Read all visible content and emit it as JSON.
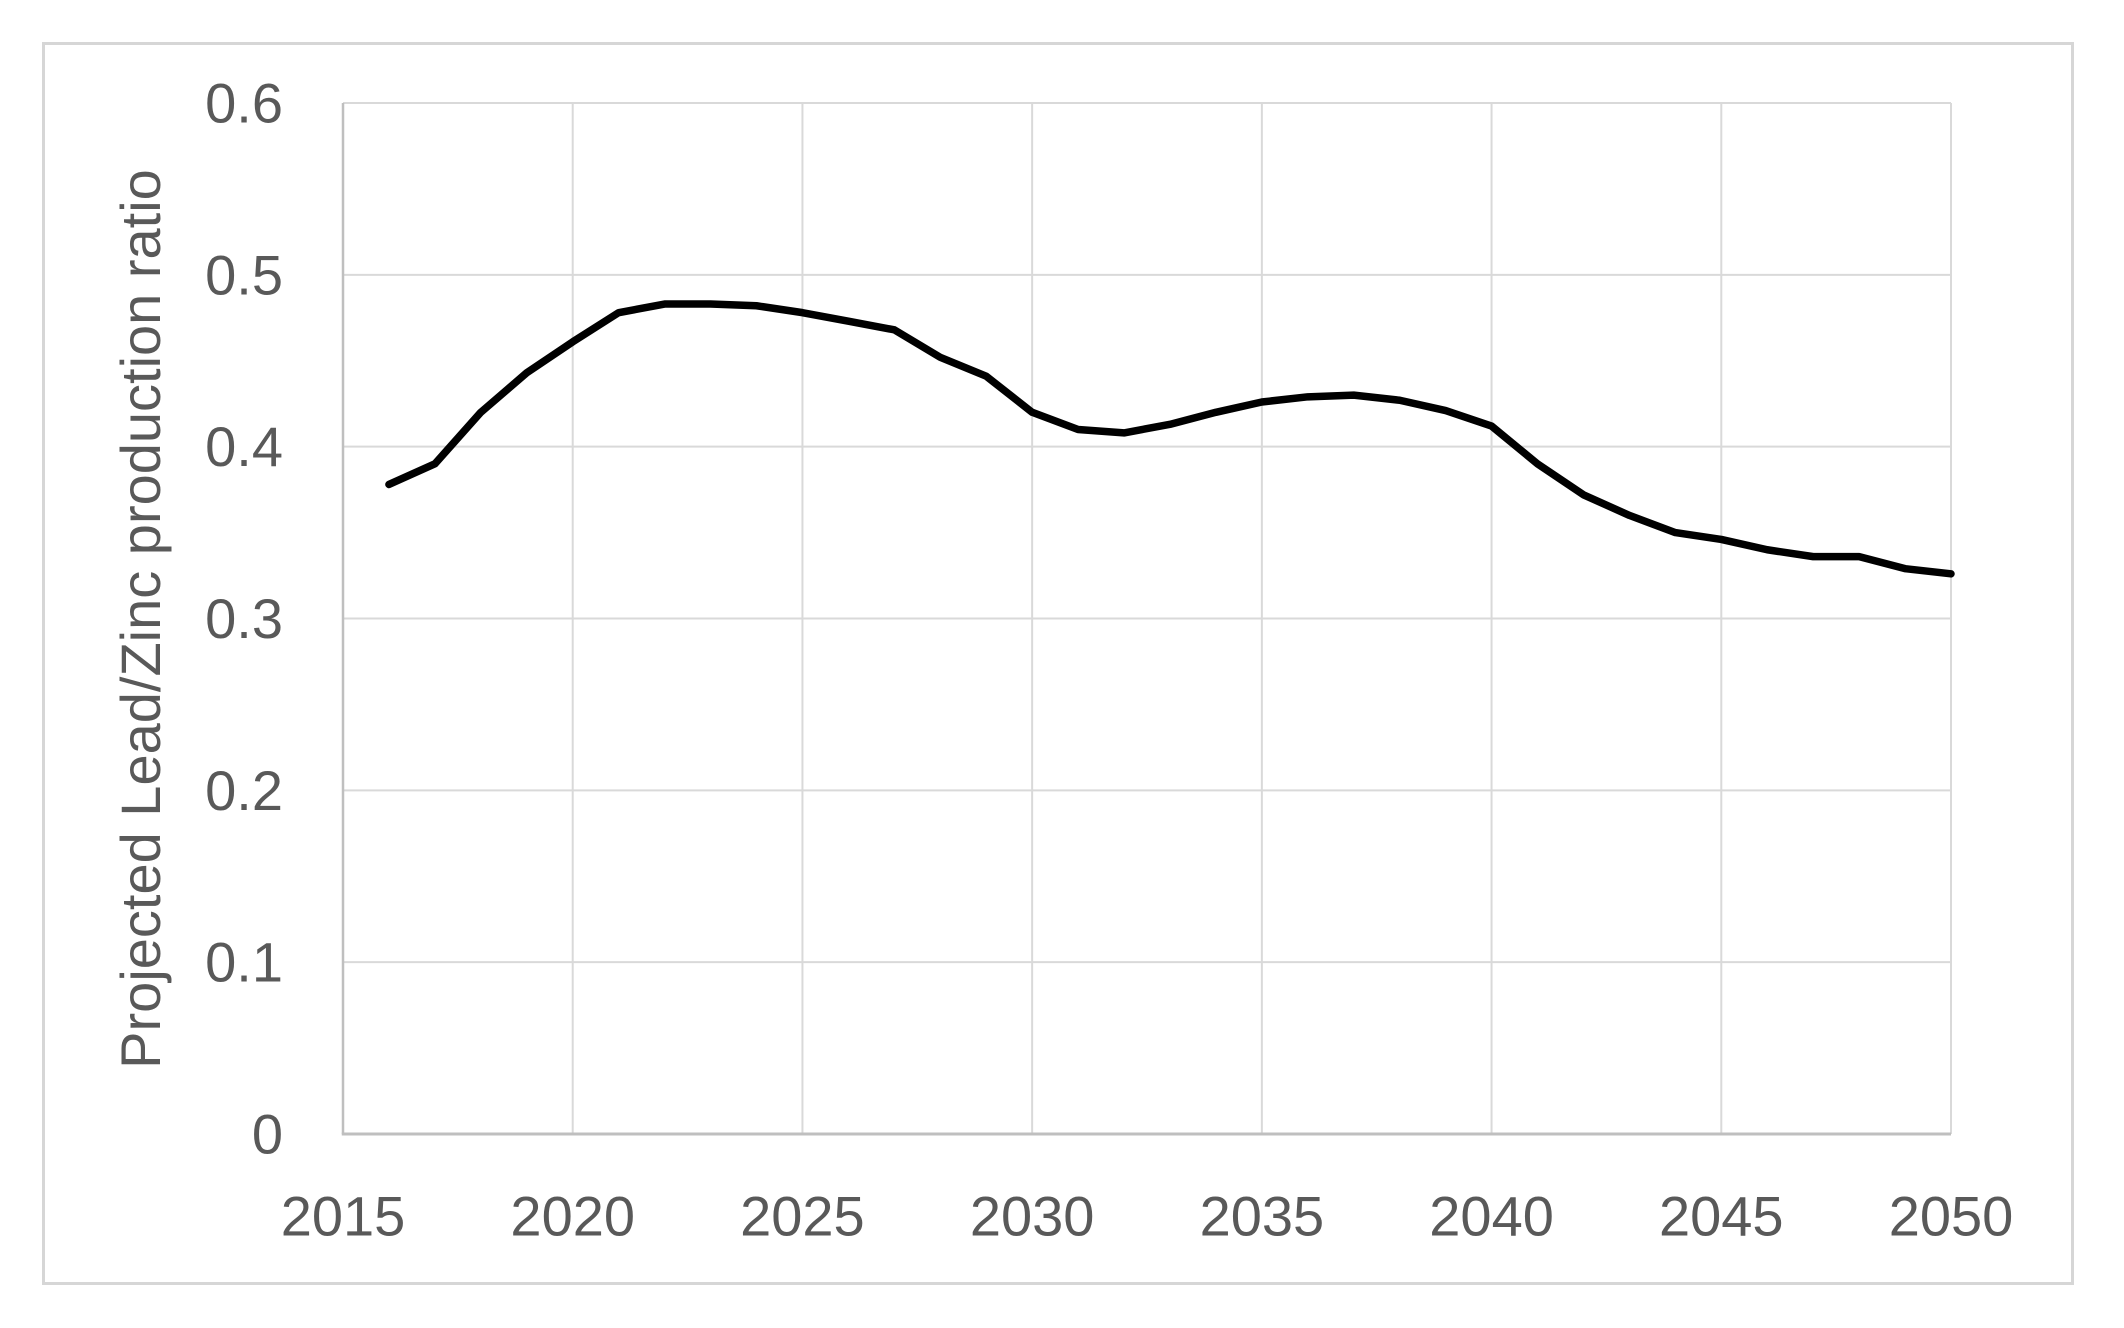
{
  "chart_data": {
    "type": "line",
    "title": "",
    "xlabel": "",
    "ylabel": "Projected Lead/Zinc production ratio",
    "x": [
      2016,
      2017,
      2018,
      2019,
      2020,
      2021,
      2022,
      2023,
      2024,
      2025,
      2026,
      2027,
      2028,
      2029,
      2030,
      2031,
      2032,
      2033,
      2034,
      2035,
      2036,
      2037,
      2038,
      2039,
      2040,
      2041,
      2042,
      2043,
      2044,
      2045,
      2046,
      2047,
      2048,
      2049,
      2050
    ],
    "series": [
      {
        "name": "Projected Lead/Zinc production ratio",
        "values": [
          0.378,
          0.39,
          0.42,
          0.443,
          0.461,
          0.478,
          0.483,
          0.483,
          0.482,
          0.478,
          0.473,
          0.468,
          0.452,
          0.441,
          0.42,
          0.41,
          0.408,
          0.413,
          0.42,
          0.426,
          0.429,
          0.43,
          0.427,
          0.421,
          0.412,
          0.39,
          0.372,
          0.36,
          0.35,
          0.346,
          0.34,
          0.336,
          0.336,
          0.329,
          0.326
        ]
      }
    ],
    "xlim": [
      2015,
      2050
    ],
    "ylim": [
      0,
      0.6
    ],
    "x_ticks": [
      "2015",
      "2020",
      "2025",
      "2030",
      "2035",
      "2040",
      "2045",
      "2050"
    ],
    "y_ticks": [
      "0",
      "0.1",
      "0.2",
      "0.3",
      "0.4",
      "0.5",
      "0.6"
    ],
    "grid": true,
    "legend_position": "none",
    "line_color": "#000000",
    "gridline_color": "#d9d9d9",
    "axis_line_color": "#bfbfbf",
    "tick_label_color": "#595959",
    "frame_border_color": "#d6d6d6",
    "background_color": "#ffffff"
  }
}
